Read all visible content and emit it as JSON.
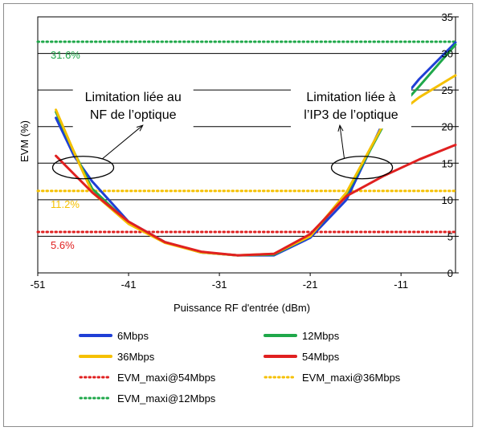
{
  "chart_data": {
    "type": "line",
    "title": "",
    "xlabel": "Puissance RF d'entrée (dBm)",
    "ylabel": "EVM (%)",
    "xlim": [
      -51,
      -5
    ],
    "ylim": [
      0,
      35
    ],
    "xticks": [
      -51,
      -41,
      -31,
      -21,
      -11
    ],
    "yticks": [
      0,
      5,
      10,
      15,
      20,
      25,
      30,
      35
    ],
    "grid": "horizontal",
    "legend_position": "bottom",
    "series": [
      {
        "name": "6Mbps",
        "color": "#1f3fd6",
        "style": "solid",
        "x": [
          -49,
          -47,
          -45,
          -41,
          -37,
          -33,
          -29,
          -25,
          -21,
          -17,
          -13,
          -9,
          -5
        ],
        "y": [
          21.2,
          16.0,
          12.5,
          7.0,
          4.2,
          2.8,
          2.4,
          2.4,
          4.8,
          10.0,
          20.5,
          26.5,
          31.5
        ]
      },
      {
        "name": "12Mbps",
        "color": "#1fa84a",
        "style": "solid",
        "x": [
          -49,
          -47,
          -45,
          -41,
          -37,
          -33,
          -29,
          -25,
          -21,
          -17,
          -13,
          -9,
          -5
        ],
        "y": [
          22.0,
          16.5,
          11.5,
          6.8,
          4.2,
          2.8,
          2.4,
          2.5,
          5.0,
          10.8,
          20.0,
          25.5,
          31.2
        ]
      },
      {
        "name": "36Mbps",
        "color": "#f5c000",
        "style": "solid",
        "x": [
          -49,
          -47,
          -45,
          -41,
          -37,
          -33,
          -29,
          -25,
          -21,
          -17,
          -13,
          -9,
          -5
        ],
        "y": [
          22.3,
          16.5,
          11.0,
          6.7,
          4.1,
          2.8,
          2.4,
          2.6,
          5.0,
          11.0,
          20.2,
          24.0,
          27.0
        ]
      },
      {
        "name": "54Mbps",
        "color": "#e02020",
        "style": "solid",
        "x": [
          -49,
          -47,
          -45,
          -41,
          -37,
          -33,
          -29,
          -25,
          -21,
          -17,
          -13,
          -9,
          -5
        ],
        "y": [
          16.0,
          13.5,
          11.0,
          7.0,
          4.2,
          2.9,
          2.4,
          2.6,
          5.3,
          10.5,
          13.2,
          15.5,
          17.5
        ]
      },
      {
        "name": "EVM_maxi@54Mbps",
        "color": "#e02020",
        "style": "dotted",
        "x": [
          -51,
          -5
        ],
        "y": [
          5.6,
          5.6
        ]
      },
      {
        "name": "EVM_maxi@36Mbps",
        "color": "#f5c000",
        "style": "dotted",
        "x": [
          -51,
          -5
        ],
        "y": [
          11.2,
          11.2
        ]
      },
      {
        "name": "EVM_maxi@12Mbps",
        "color": "#1fa84a",
        "style": "dotted",
        "x": [
          -51,
          -5
        ],
        "y": [
          31.6,
          31.6
        ]
      }
    ],
    "reference_labels": [
      {
        "text": "31.6%",
        "y": 31.6,
        "color": "#1fa84a"
      },
      {
        "text": "11.2%",
        "y": 11.2,
        "color": "#f5c000"
      },
      {
        "text": "5.6%",
        "y": 5.6,
        "color": "#e02020"
      }
    ],
    "annotations": [
      {
        "lines": [
          "Limitation liée au",
          "NF de l’optique"
        ],
        "x": -40.5,
        "y": 22.8,
        "ellipse": {
          "x": -46,
          "y": 14.4
        }
      },
      {
        "lines": [
          "Limitation liée à",
          "l’IP3 de l’optique"
        ],
        "x": -16.5,
        "y": 22.8,
        "ellipse": {
          "x": -15.3,
          "y": 14.4
        }
      }
    ]
  }
}
